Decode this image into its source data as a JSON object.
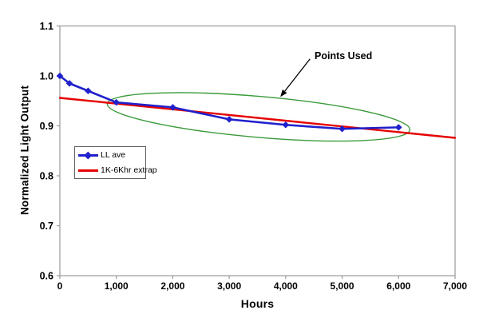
{
  "chart_data": {
    "type": "line",
    "title": "",
    "xlabel": "Hours",
    "ylabel": "Normalized Light Output",
    "xlim": [
      0,
      7000
    ],
    "ylim": [
      0.6,
      1.1
    ],
    "x_ticks": [
      0,
      1000,
      2000,
      3000,
      4000,
      5000,
      6000,
      7000
    ],
    "x_tick_labels": [
      "0",
      "1,000",
      "2,000",
      "3,000",
      "4,000",
      "5,000",
      "6,000",
      "7,000"
    ],
    "y_ticks": [
      1.1,
      1.0,
      0.9,
      0.8,
      0.7,
      0.6
    ],
    "y_tick_labels": [
      "1.1",
      "1.0",
      "0.9",
      "0.8",
      "0.7",
      "0.6"
    ],
    "grid": false,
    "axis_color": "#9a9a9a",
    "text_color": "#000000",
    "legend_position": "inside-left-middle",
    "series": [
      {
        "name": "LL ave",
        "color": "#2020cc",
        "marker": "diamond",
        "x": [
          0,
          170,
          500,
          1000,
          2000,
          3000,
          4000,
          5000,
          6000
        ],
        "y": [
          1.0,
          0.985,
          0.97,
          0.947,
          0.937,
          0.913,
          0.902,
          0.894,
          0.897
        ]
      },
      {
        "name": "1K-6Khr extrap",
        "color": "#e60000",
        "marker": "none",
        "x": [
          0,
          7000
        ],
        "y": [
          0.956,
          0.876
        ]
      }
    ],
    "annotations": {
      "label": {
        "text": "Points Used"
      },
      "arrow": {
        "from": [
          4430,
          1.034
        ],
        "to": [
          3905,
          0.958
        ],
        "color": "#000000"
      },
      "ellipse": {
        "color": "#3a9a3a",
        "center": [
          3520,
          0.918
        ],
        "rx_hours": 2690,
        "ry_value": 0.041,
        "rotation_deg": 4.9,
        "meaning": "circles the 1,000-6,000 hour points used for the extrapolation"
      }
    }
  }
}
